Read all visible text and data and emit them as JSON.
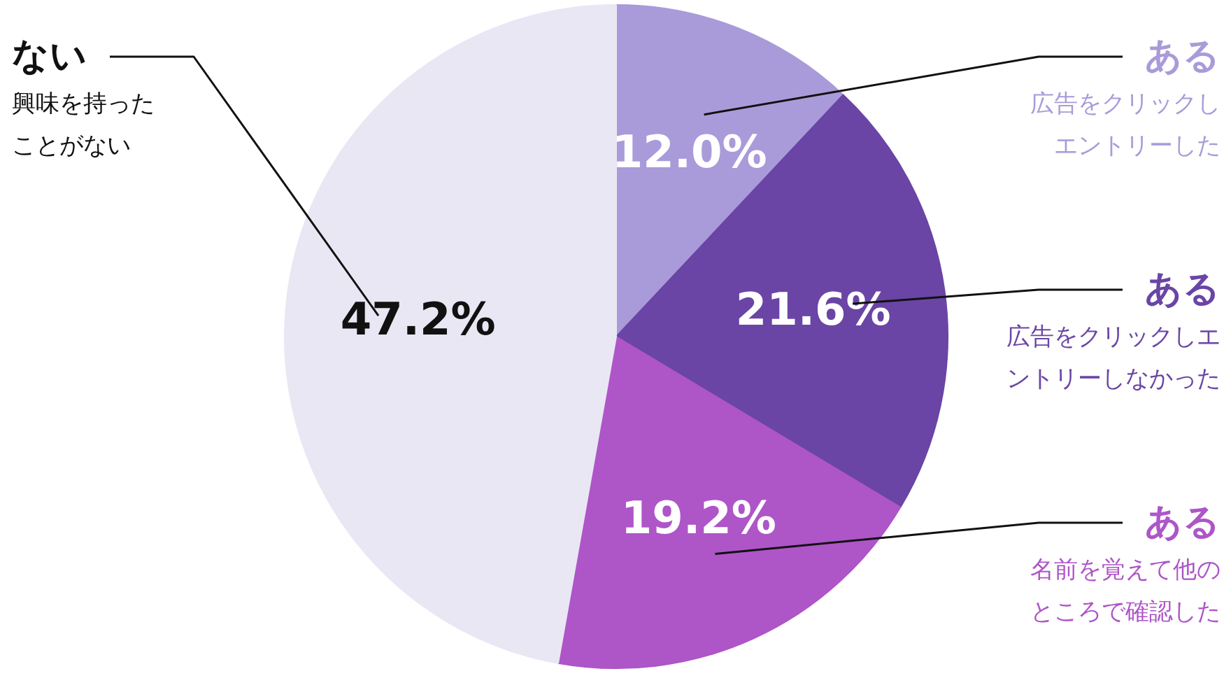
{
  "chart_data": {
    "type": "pie",
    "categories": [
      "ある広告をクリックしエントリーした",
      "ある広告をクリックしエントリーしなかった",
      "ある名前を覚えて他のところで確認した",
      "ない興味を持ったことがない"
    ],
    "values": [
      12.0,
      21.6,
      19.2,
      47.2
    ],
    "value_labels": [
      "12.0%",
      "21.6%",
      "19.2%",
      "47.2%"
    ],
    "colors": [
      "#a99bd9",
      "#6a45a5",
      "#ae55c8",
      "#e9e7f4"
    ]
  }
}
